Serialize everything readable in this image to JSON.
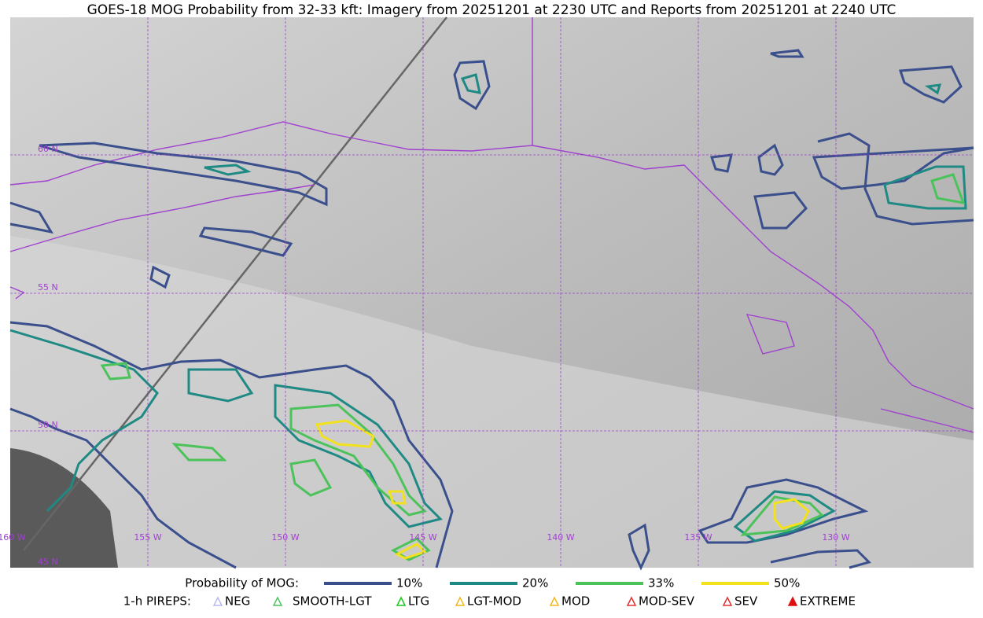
{
  "title": "GOES-18 MOG Probability from 32-33 kft: Imagery from 20251201 at 2230 UTC and Reports from 20251201 at 2240 UTC",
  "map": {
    "lat_labels": [
      "60 N",
      "55 N",
      "50 N",
      "45 N"
    ],
    "lon_labels": [
      "160 W",
      "155 W",
      "150 W",
      "145 W",
      "140 W",
      "135 W",
      "130 W"
    ]
  },
  "legend": {
    "probability": {
      "label": "Probability of MOG:",
      "items": [
        {
          "label": "10%",
          "color": "#3a4f8c"
        },
        {
          "label": "20%",
          "color": "#1f8a84"
        },
        {
          "label": "33%",
          "color": "#4cc35a"
        },
        {
          "label": "50%",
          "color": "#f2e11c"
        }
      ]
    },
    "pireps": {
      "label": "1-h PIREPS:",
      "items": [
        {
          "label": "NEG",
          "color": "#b9b9f0"
        },
        {
          "label": "SMOOTH-LGT",
          "color": "#4cc35a"
        },
        {
          "label": "LTG",
          "color": "#19c819"
        },
        {
          "label": "LGT-MOD",
          "color": "#f2b71c"
        },
        {
          "label": "MOD",
          "color": "#f2b71c"
        },
        {
          "label": "MOD-SEV",
          "color": "#e03030"
        },
        {
          "label": "SEV",
          "color": "#e03030"
        },
        {
          "label": "EXTREME",
          "color": "#e01010"
        }
      ]
    }
  }
}
